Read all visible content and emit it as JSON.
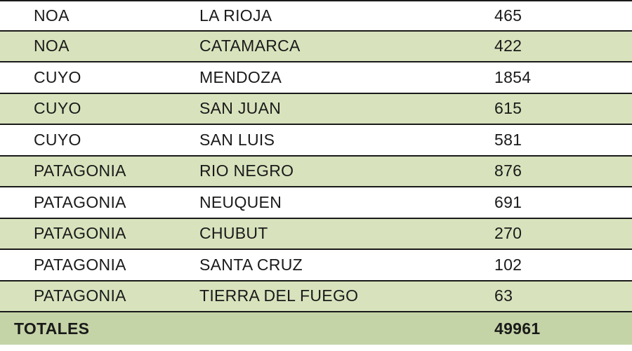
{
  "table": {
    "background_color": "#ffffff",
    "alt_row_color": "#d8e3bd",
    "totals_bg_color": "#c5d4a7",
    "border_color": "#1a1a1a",
    "text_color": "#1a1a1a",
    "font_size": 23,
    "font_family": "Arial",
    "columns": [
      "region",
      "province",
      "value"
    ],
    "rows": [
      {
        "region": "NOA",
        "province": "LA RIOJA",
        "value": "465",
        "alt": false
      },
      {
        "region": "NOA",
        "province": "CATAMARCA",
        "value": "422",
        "alt": true
      },
      {
        "region": "CUYO",
        "province": "MENDOZA",
        "value": "1854",
        "alt": false
      },
      {
        "region": "CUYO",
        "province": "SAN JUAN",
        "value": "615",
        "alt": true
      },
      {
        "region": "CUYO",
        "province": "SAN LUIS",
        "value": "581",
        "alt": false
      },
      {
        "region": "PATAGONIA",
        "province": "RIO NEGRO",
        "value": "876",
        "alt": true
      },
      {
        "region": "PATAGONIA",
        "province": "NEUQUEN",
        "value": "691",
        "alt": false
      },
      {
        "region": "PATAGONIA",
        "province": "CHUBUT",
        "value": "270",
        "alt": true
      },
      {
        "region": "PATAGONIA",
        "province": "SANTA CRUZ",
        "value": "102",
        "alt": false
      },
      {
        "region": "PATAGONIA",
        "province": "TIERRA DEL FUEGO",
        "value": "63",
        "alt": true
      }
    ],
    "totals": {
      "label": "TOTALES",
      "value": "49961"
    }
  }
}
